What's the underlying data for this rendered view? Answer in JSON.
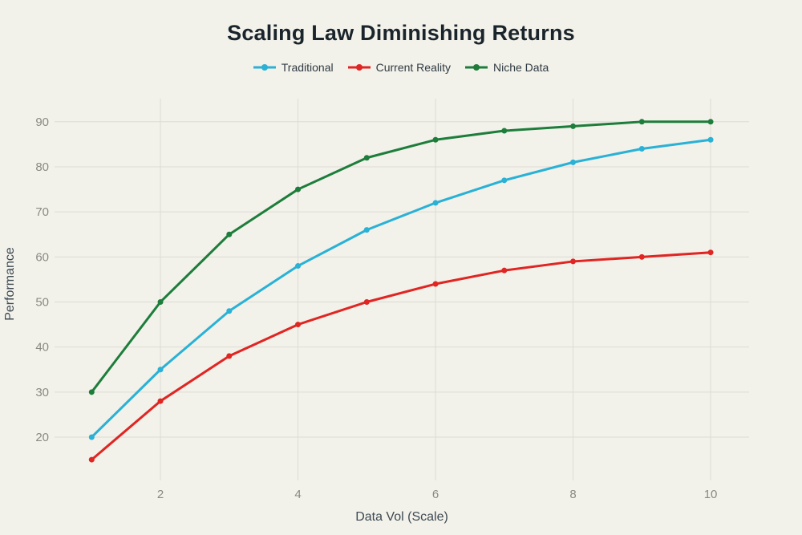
{
  "chart_data": {
    "type": "line",
    "title": "Scaling Law Diminishing Returns",
    "xlabel": "Data Vol (Scale)",
    "ylabel": "Performance",
    "x": [
      1,
      2,
      3,
      4,
      5,
      6,
      7,
      8,
      9,
      10
    ],
    "xticks": [
      2,
      4,
      6,
      8,
      10
    ],
    "yticks": [
      20,
      30,
      40,
      50,
      60,
      70,
      80,
      90
    ],
    "xlim": [
      0.45,
      10.55
    ],
    "ylim": [
      11,
      95
    ],
    "grid": true,
    "legend_position": "top-center",
    "marker": "dot",
    "series": [
      {
        "name": "Traditional",
        "color": "#29b1d6",
        "values": [
          20,
          35,
          48,
          58,
          66,
          72,
          77,
          81,
          84,
          86
        ]
      },
      {
        "name": "Current Reality",
        "color": "#e02522",
        "values": [
          15,
          28,
          38,
          45,
          50,
          54,
          57,
          59,
          60,
          61
        ]
      },
      {
        "name": "Niche Data",
        "color": "#1d7d3b",
        "values": [
          30,
          50,
          65,
          75,
          82,
          86,
          88,
          89,
          90,
          90
        ]
      }
    ]
  },
  "theme": {
    "background": "#f2f1ea",
    "grid_color": "#dddcd4",
    "tick_text_color": "#8a8a84",
    "axis_label_color": "#3d4a52",
    "title_color": "#1a242b",
    "legend_text_color": "#2f3b42"
  }
}
